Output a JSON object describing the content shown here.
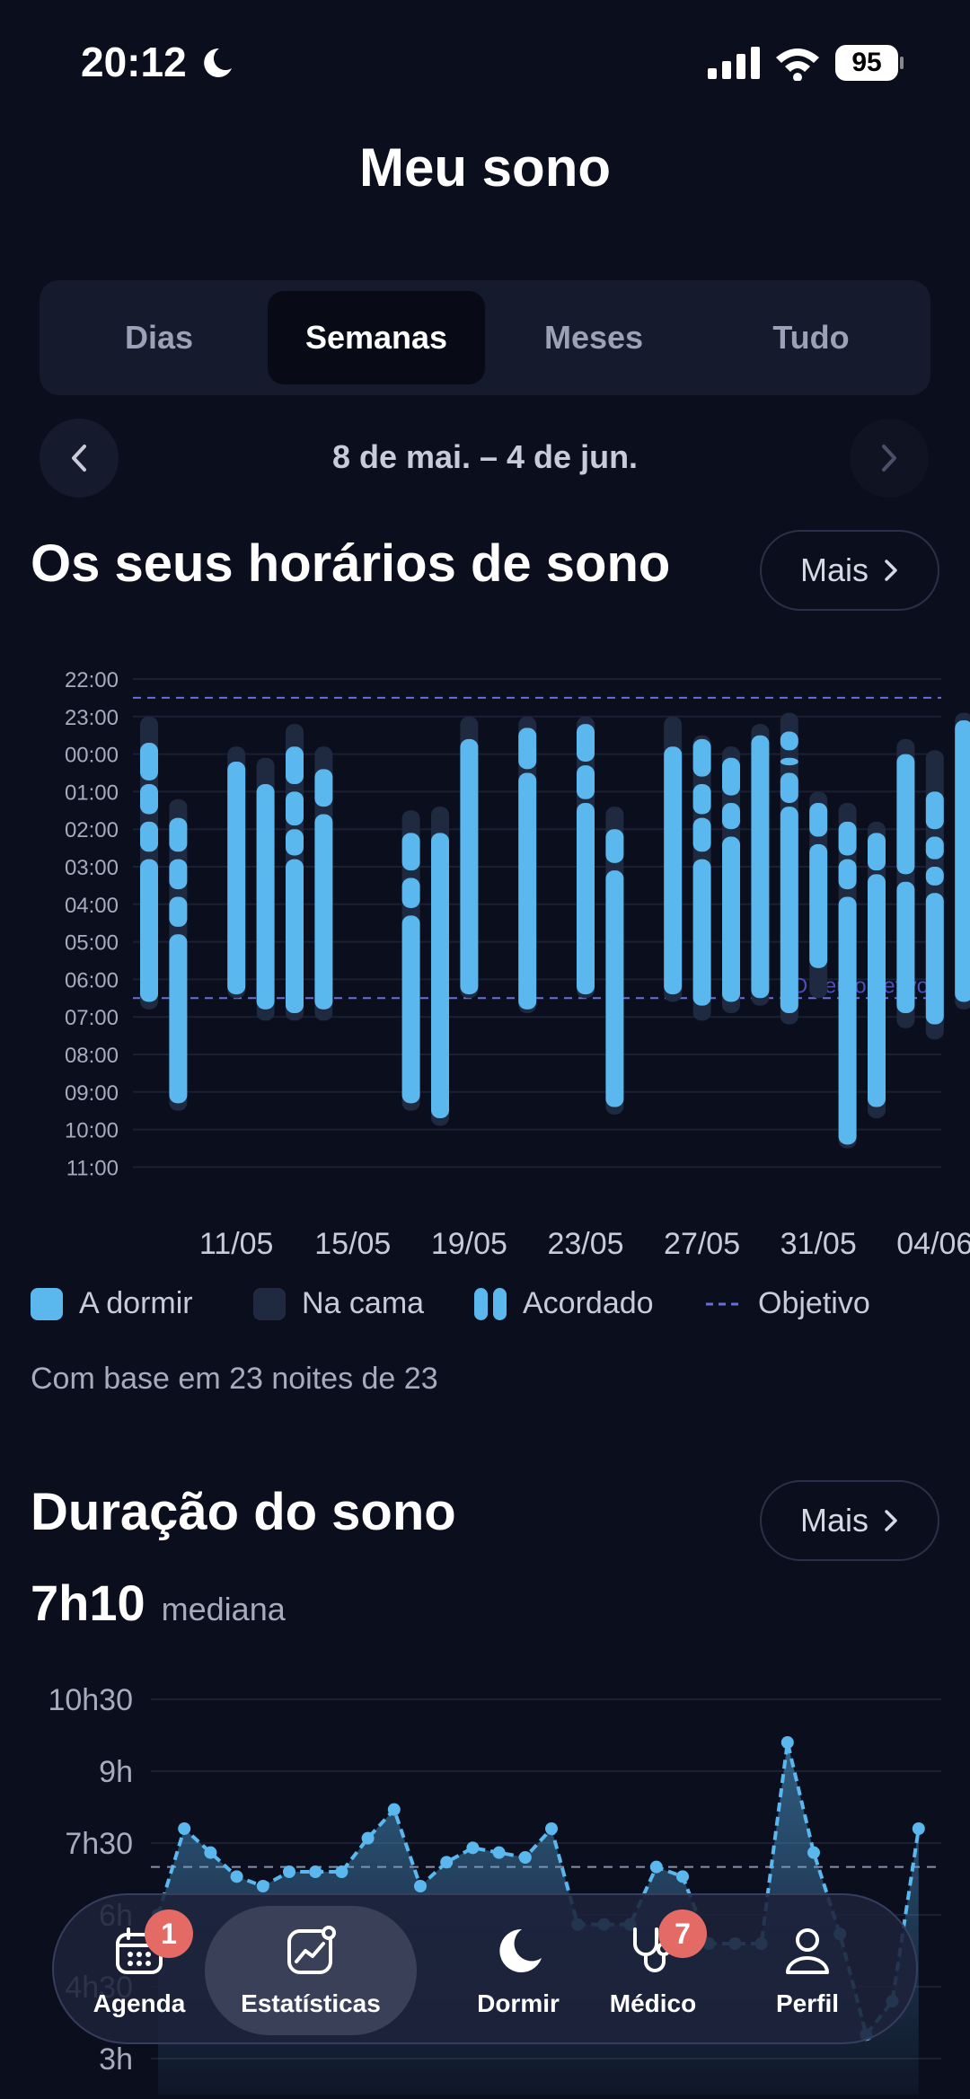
{
  "status_bar": {
    "time": "20:12",
    "battery": "95"
  },
  "header": {
    "title": "Meu sono"
  },
  "period_tabs": [
    {
      "label": "Dias",
      "active": false
    },
    {
      "label": "Semanas",
      "active": true
    },
    {
      "label": "Meses",
      "active": false
    },
    {
      "label": "Tudo",
      "active": false
    }
  ],
  "date_range": "8 de mai. – 4 de jun.",
  "schedule": {
    "title": "Os seus horários de sono",
    "more_label": "Mais",
    "goal_label": "O seu objetivo",
    "based_on": "Com base em 23 noites de 23",
    "legend": {
      "asleep": "A dormir",
      "in_bed": "Na cama",
      "awake": "Acordado",
      "goal": "Objetivo"
    },
    "colors": {
      "asleep": "#5ab8ee",
      "in_bed": "#1f2a40",
      "goal": "#6a6fd8"
    }
  },
  "duration": {
    "title": "Duração do sono",
    "more_label": "Mais",
    "median_value": "7h10",
    "median_label": "mediana"
  },
  "chart_data": [
    {
      "type": "bar",
      "title": "Os seus horários de sono",
      "y_ticks": [
        "22:00",
        "23:00",
        "00:00",
        "01:00",
        "02:00",
        "03:00",
        "04:00",
        "05:00",
        "06:00",
        "07:00",
        "08:00",
        "09:00",
        "10:00",
        "11:00"
      ],
      "x_ticks": [
        "11/05",
        "15/05",
        "19/05",
        "23/05",
        "27/05",
        "31/05",
        "04/06"
      ],
      "ylim": [
        "22:00",
        "11:00"
      ],
      "goal": {
        "bedtime": "22:30",
        "wake": "06:30"
      },
      "series": [
        {
          "name": "Na cama",
          "night": "08/05",
          "start": 23.0,
          "end": 30.8
        },
        {
          "name": "Na cama",
          "night": "09/05",
          "start": 25.2,
          "end": 33.5
        },
        {
          "name": "Na cama",
          "night": "11/05",
          "start": 23.8,
          "end": 30.5
        },
        {
          "name": "Na cama",
          "night": "12/05",
          "start": 24.1,
          "end": 31.1
        },
        {
          "name": "Na cama",
          "night": "13/05",
          "start": 23.2,
          "end": 31.1
        },
        {
          "name": "Na cama",
          "night": "14/05",
          "start": 23.8,
          "end": 31.1
        },
        {
          "name": "Na cama",
          "night": "17/05",
          "start": 25.5,
          "end": 33.5
        },
        {
          "name": "Na cama",
          "night": "18/05",
          "start": 25.4,
          "end": 33.9
        },
        {
          "name": "Na cama",
          "night": "19/05",
          "start": 23.0,
          "end": 30.5
        },
        {
          "name": "Na cama",
          "night": "21/05",
          "start": 23.0,
          "end": 30.9
        },
        {
          "name": "Na cama",
          "night": "23/05",
          "start": 23.0,
          "end": 30.5
        },
        {
          "name": "Na cama",
          "night": "24/05",
          "start": 25.4,
          "end": 33.6
        },
        {
          "name": "Na cama",
          "night": "26/05",
          "start": 23.0,
          "end": 30.6
        },
        {
          "name": "Na cama",
          "night": "27/05",
          "start": 23.5,
          "end": 31.1
        },
        {
          "name": "Na cama",
          "night": "28/05",
          "start": 23.8,
          "end": 30.9
        },
        {
          "name": "Na cama",
          "night": "29/05",
          "start": 23.2,
          "end": 30.7
        },
        {
          "name": "Na cama",
          "night": "30/05",
          "start": 22.9,
          "end": 31.2
        },
        {
          "name": "Na cama",
          "night": "31/05",
          "start": 25.0,
          "end": 30.5
        },
        {
          "name": "Na cama",
          "night": "01/06",
          "start": 25.3,
          "end": 34.5
        },
        {
          "name": "Na cama",
          "night": "02/06",
          "start": 25.8,
          "end": 33.7
        },
        {
          "name": "Na cama",
          "night": "03/06",
          "start": 23.6,
          "end": 31.3
        },
        {
          "name": "Na cama",
          "night": "04/06",
          "start": 23.9,
          "end": 31.6
        },
        {
          "name": "Na cama",
          "night": "05/06",
          "start": 22.9,
          "end": 30.8
        },
        {
          "name": "A dormir",
          "night": "08/05",
          "start": 23.7,
          "end": 24.7
        },
        {
          "name": "A dormir",
          "night": "08/05",
          "start": 24.8,
          "end": 25.6
        },
        {
          "name": "A dormir",
          "night": "08/05",
          "start": 25.8,
          "end": 26.6
        },
        {
          "name": "A dormir",
          "night": "08/05",
          "start": 26.8,
          "end": 30.6
        },
        {
          "name": "A dormir",
          "night": "09/05",
          "start": 25.7,
          "end": 26.6
        },
        {
          "name": "A dormir",
          "night": "09/05",
          "start": 26.8,
          "end": 27.6
        },
        {
          "name": "A dormir",
          "night": "09/05",
          "start": 27.8,
          "end": 28.6
        },
        {
          "name": "A dormir",
          "night": "09/05",
          "start": 28.8,
          "end": 33.3
        },
        {
          "name": "A dormir",
          "night": "11/05",
          "start": 24.2,
          "end": 30.4
        },
        {
          "name": "A dormir",
          "night": "12/05",
          "start": 24.8,
          "end": 30.8
        },
        {
          "name": "A dormir",
          "night": "13/05",
          "start": 23.8,
          "end": 24.8
        },
        {
          "name": "A dormir",
          "night": "13/05",
          "start": 25.0,
          "end": 25.9
        },
        {
          "name": "A dormir",
          "night": "13/05",
          "start": 26.0,
          "end": 26.7
        },
        {
          "name": "A dormir",
          "night": "13/05",
          "start": 26.8,
          "end": 30.9
        },
        {
          "name": "A dormir",
          "night": "14/05",
          "start": 24.4,
          "end": 25.4
        },
        {
          "name": "A dormir",
          "night": "14/05",
          "start": 25.6,
          "end": 30.8
        },
        {
          "name": "A dormir",
          "night": "17/05",
          "start": 26.1,
          "end": 27.1
        },
        {
          "name": "A dormir",
          "night": "17/05",
          "start": 27.3,
          "end": 28.1
        },
        {
          "name": "A dormir",
          "night": "17/05",
          "start": 28.3,
          "end": 33.3
        },
        {
          "name": "A dormir",
          "night": "18/05",
          "start": 26.1,
          "end": 33.7
        },
        {
          "name": "A dormir",
          "night": "19/05",
          "start": 23.6,
          "end": 30.4
        },
        {
          "name": "A dormir",
          "night": "21/05",
          "start": 23.3,
          "end": 24.4
        },
        {
          "name": "A dormir",
          "night": "21/05",
          "start": 24.5,
          "end": 30.8
        },
        {
          "name": "A dormir",
          "night": "23/05",
          "start": 23.2,
          "end": 24.2
        },
        {
          "name": "A dormir",
          "night": "23/05",
          "start": 24.3,
          "end": 25.2
        },
        {
          "name": "A dormir",
          "night": "23/05",
          "start": 25.3,
          "end": 30.4
        },
        {
          "name": "A dormir",
          "night": "24/05",
          "start": 26.0,
          "end": 26.9
        },
        {
          "name": "A dormir",
          "night": "24/05",
          "start": 27.1,
          "end": 33.4
        },
        {
          "name": "A dormir",
          "night": "26/05",
          "start": 23.8,
          "end": 30.4
        },
        {
          "name": "A dormir",
          "night": "27/05",
          "start": 23.6,
          "end": 24.6
        },
        {
          "name": "A dormir",
          "night": "27/05",
          "start": 24.8,
          "end": 25.6
        },
        {
          "name": "A dormir",
          "night": "27/05",
          "start": 25.7,
          "end": 26.6
        },
        {
          "name": "A dormir",
          "night": "27/05",
          "start": 26.8,
          "end": 30.7
        },
        {
          "name": "A dormir",
          "night": "28/05",
          "start": 24.1,
          "end": 25.1
        },
        {
          "name": "A dormir",
          "night": "28/05",
          "start": 25.3,
          "end": 26.0
        },
        {
          "name": "A dormir",
          "night": "28/05",
          "start": 26.2,
          "end": 30.6
        },
        {
          "name": "A dormir",
          "night": "29/05",
          "start": 23.5,
          "end": 30.5
        },
        {
          "name": "A dormir",
          "night": "30/05",
          "start": 23.4,
          "end": 23.9
        },
        {
          "name": "A dormir",
          "night": "30/05",
          "start": 24.1,
          "end": 24.3
        },
        {
          "name": "A dormir",
          "night": "30/05",
          "start": 24.5,
          "end": 25.3
        },
        {
          "name": "A dormir",
          "night": "30/05",
          "start": 25.4,
          "end": 30.9
        },
        {
          "name": "A dormir",
          "night": "31/05",
          "start": 25.3,
          "end": 26.2
        },
        {
          "name": "A dormir",
          "night": "31/05",
          "start": 26.4,
          "end": 29.7
        },
        {
          "name": "A dormir",
          "night": "01/06",
          "start": 25.8,
          "end": 26.7
        },
        {
          "name": "A dormir",
          "night": "01/06",
          "start": 26.8,
          "end": 27.6
        },
        {
          "name": "A dormir",
          "night": "01/06",
          "start": 27.8,
          "end": 34.4
        },
        {
          "name": "A dormir",
          "night": "02/06",
          "start": 26.1,
          "end": 27.1
        },
        {
          "name": "A dormir",
          "night": "02/06",
          "start": 27.2,
          "end": 33.4
        },
        {
          "name": "A dormir",
          "night": "03/06",
          "start": 24.0,
          "end": 27.2
        },
        {
          "name": "A dormir",
          "night": "03/06",
          "start": 27.4,
          "end": 30.9
        },
        {
          "name": "A dormir",
          "night": "04/06",
          "start": 25.0,
          "end": 26.0
        },
        {
          "name": "A dormir",
          "night": "04/06",
          "start": 26.2,
          "end": 26.8
        },
        {
          "name": "A dormir",
          "night": "04/06",
          "start": 27.0,
          "end": 27.5
        },
        {
          "name": "A dormir",
          "night": "04/06",
          "start": 27.7,
          "end": 31.2
        },
        {
          "name": "A dormir",
          "night": "05/06",
          "start": 23.1,
          "end": 30.6
        }
      ]
    },
    {
      "type": "area",
      "title": "Duração do sono",
      "y_ticks": [
        "10h30",
        "9h",
        "7h30",
        "6h",
        "4h30",
        "3h"
      ],
      "ylim": [
        3,
        10.5
      ],
      "goal_hours": 7.0,
      "series": [
        {
          "name": "Duração do sono",
          "x": [
            0,
            1,
            2,
            3,
            4,
            5,
            6,
            7,
            8,
            9,
            10,
            11,
            12,
            13,
            14,
            15,
            16,
            17,
            18,
            19,
            20,
            21,
            22,
            23,
            24,
            25,
            26,
            27,
            28,
            29
          ],
          "values": [
            6.0,
            7.8,
            7.3,
            6.8,
            6.6,
            6.9,
            6.9,
            6.9,
            7.6,
            8.2,
            6.6,
            7.1,
            7.4,
            7.3,
            7.2,
            7.8,
            5.8,
            5.8,
            5.8,
            7.0,
            6.8,
            5.4,
            5.4,
            5.4,
            9.6,
            7.3,
            5.6,
            3.5,
            4.2,
            7.8
          ],
          "drawn": [
            true,
            true,
            true,
            true,
            true,
            true,
            true,
            true,
            true,
            true,
            true,
            true,
            true,
            true,
            true,
            true,
            true,
            true,
            true,
            true,
            true,
            true,
            true,
            true,
            true,
            true,
            true,
            true,
            true,
            true
          ]
        }
      ]
    }
  ],
  "tab_bar": [
    {
      "label": "Agenda",
      "icon": "calendar-icon",
      "badge": "1",
      "active": false
    },
    {
      "label": "Estatísticas",
      "icon": "chart-icon",
      "badge": "",
      "active": true
    },
    {
      "label": "Dormir",
      "icon": "moon-icon",
      "badge": "",
      "active": false
    },
    {
      "label": "Médico",
      "icon": "stethoscope-icon",
      "badge": "7",
      "active": false
    },
    {
      "label": "Perfil",
      "icon": "person-icon",
      "badge": "",
      "active": false
    }
  ]
}
